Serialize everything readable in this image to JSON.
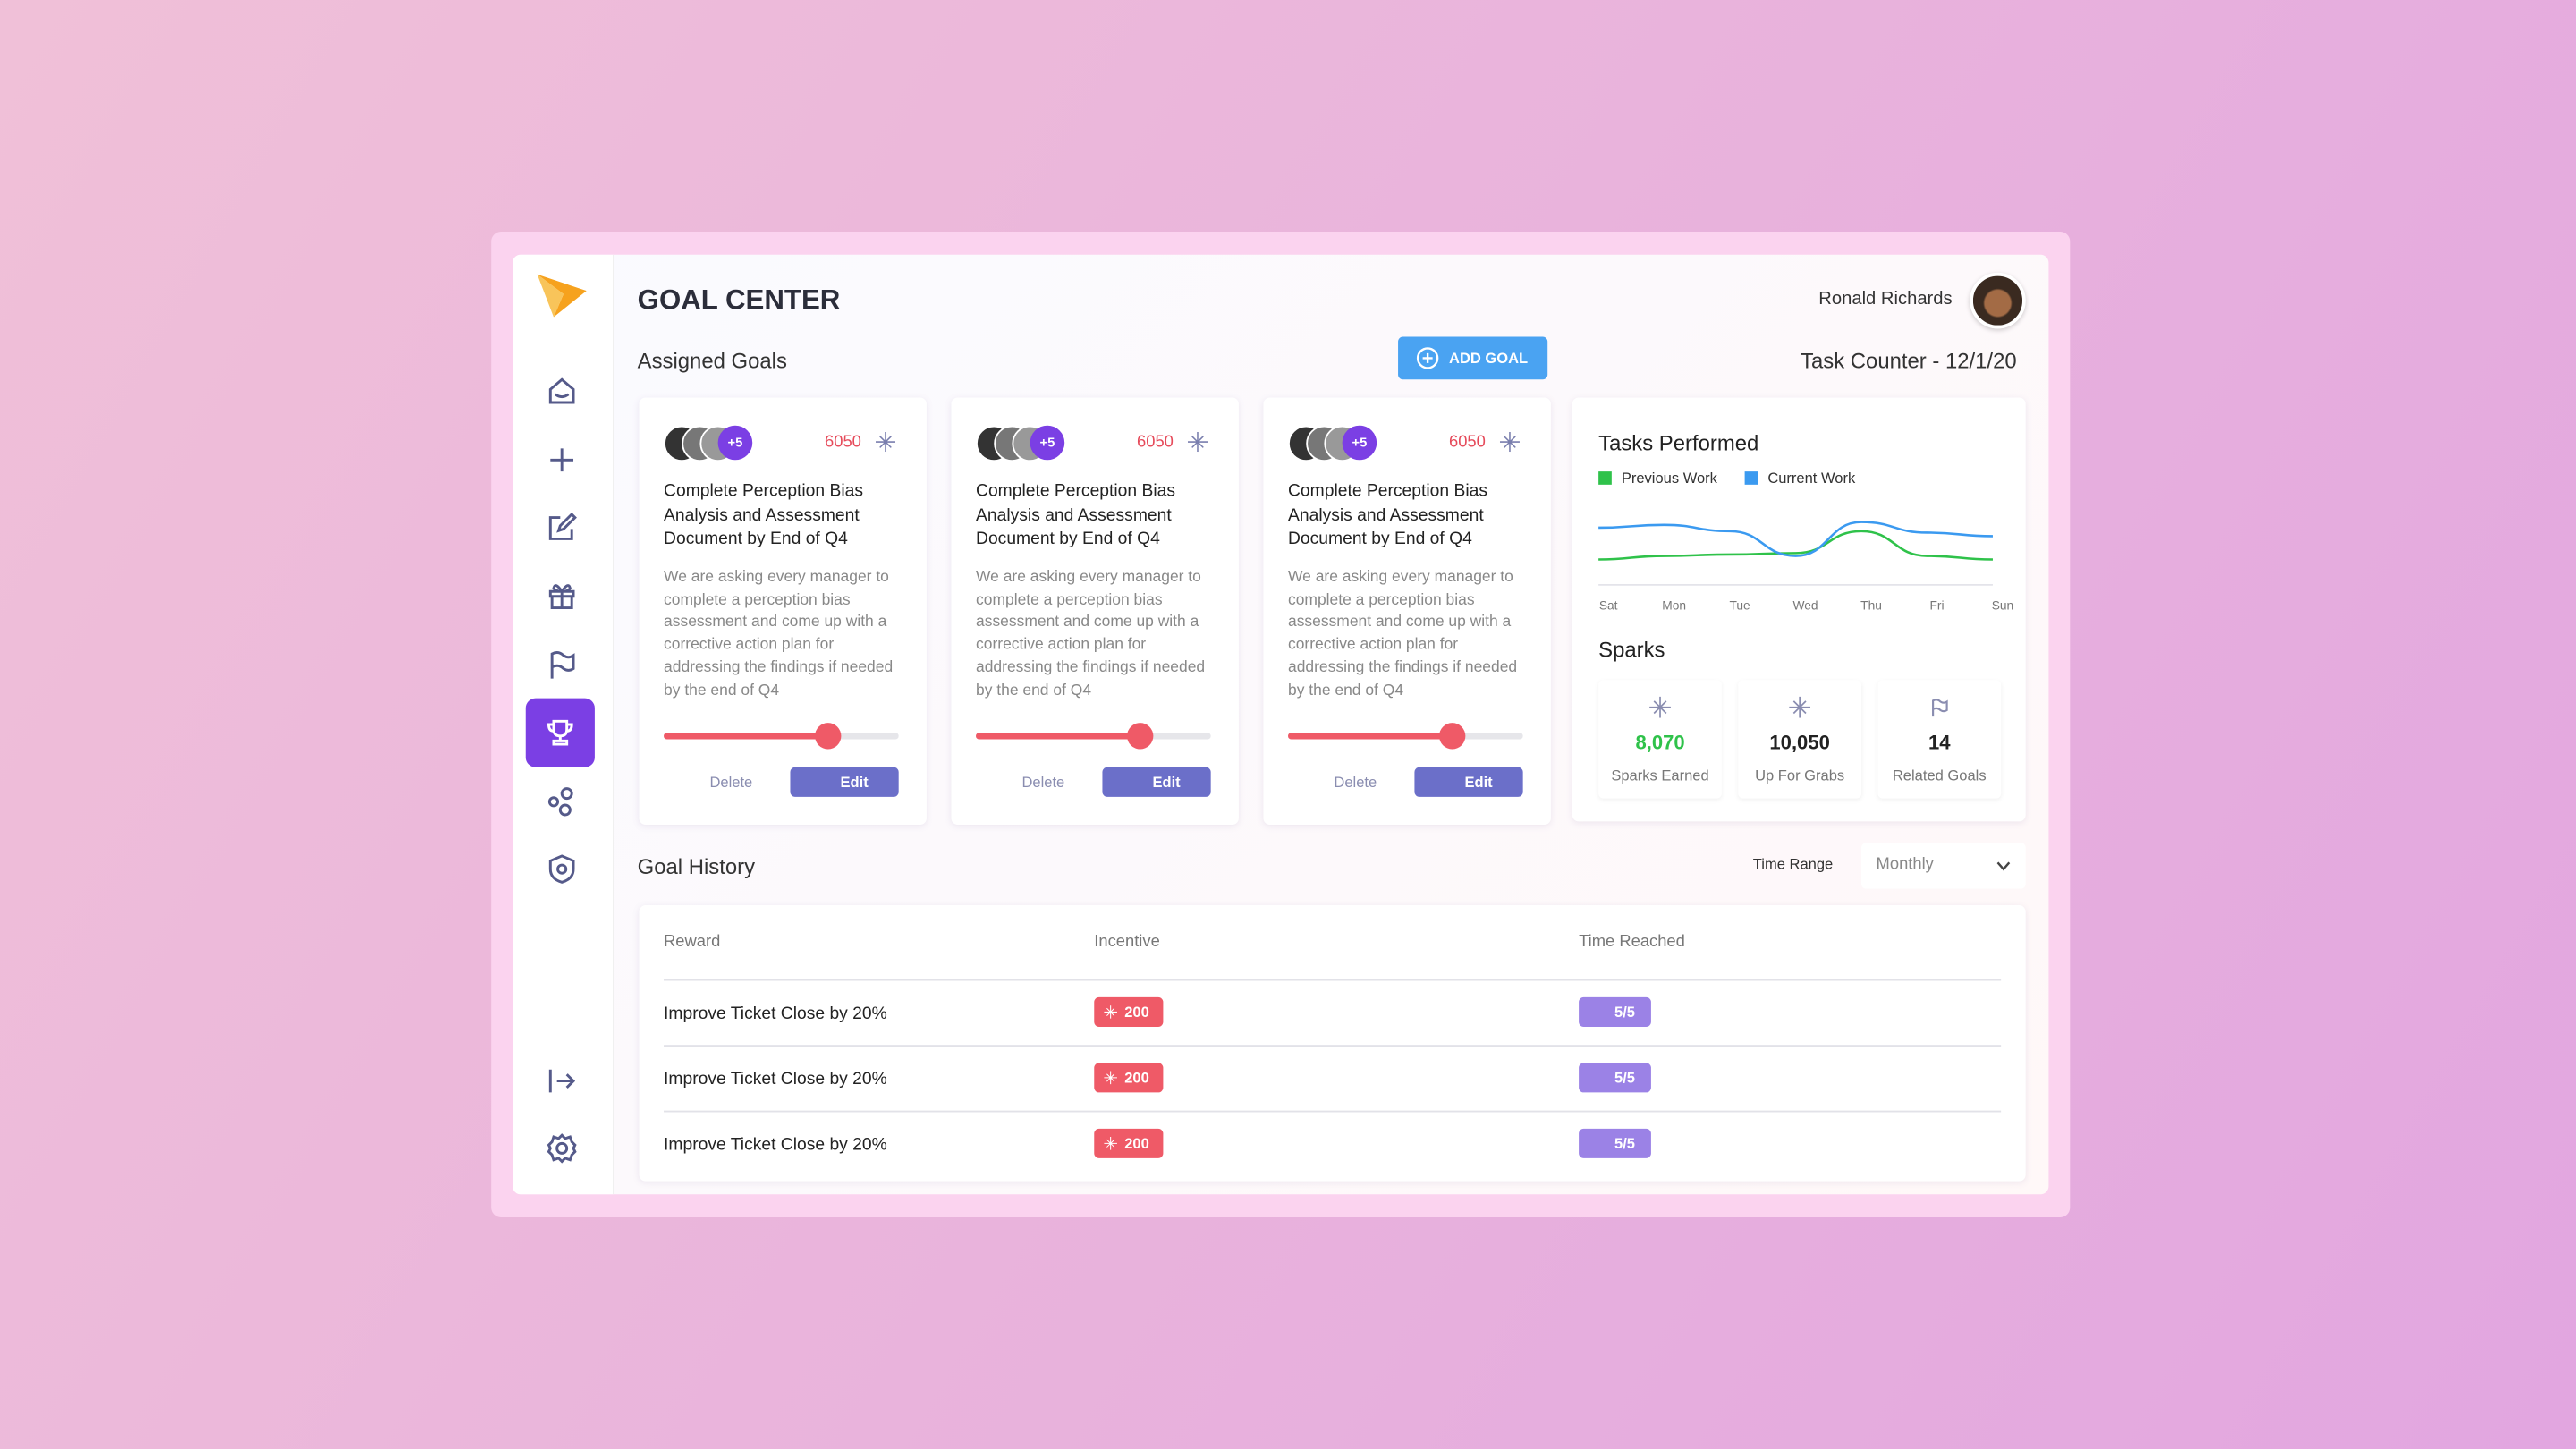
{
  "header": {
    "title": "GOAL CENTER",
    "user": "Ronald Richards"
  },
  "assigned_goals": {
    "title": "Assigned Goals",
    "add_button": "ADD GOAL",
    "cards": [
      {
        "more": "+5",
        "points": 6050,
        "title": "Complete Perception Bias Analysis and Assessment Document by End of Q4",
        "description": "We are asking every manager to complete a perception bias assessment and come up  with a corrective action plan for addressing the findings if needed by the end of Q4",
        "progress": 70,
        "delete": "Delete",
        "edit": "Edit"
      },
      {
        "more": "+5",
        "points": 6050,
        "title": "Complete Perception Bias Analysis and Assessment Document by End of Q4",
        "description": "We are asking every manager to complete a perception bias assessment and come up  with a corrective action plan for addressing the findings if needed by the end of Q4",
        "progress": 70,
        "delete": "Delete",
        "edit": "Edit"
      },
      {
        "more": "+5",
        "points": 6050,
        "title": "Complete Perception Bias Analysis and Assessment Document by End of Q4",
        "description": "We are asking every manager to complete a perception bias assessment and come up  with a corrective action plan for addressing the findings if needed by the end of Q4",
        "progress": 70,
        "delete": "Delete",
        "edit": "Edit"
      }
    ]
  },
  "task_counter": "Task Counter - 12/1/20",
  "chart_data": {
    "type": "line",
    "title": "Tasks Performed",
    "categories": [
      "Sat",
      "Mon",
      "Tue",
      "Wed",
      "Thu",
      "Fri",
      "Sun"
    ],
    "series": [
      {
        "name": "Previous Work",
        "color": "#2fc24a",
        "values": [
          22,
          27,
          29,
          31,
          62,
          27,
          22
        ]
      },
      {
        "name": "Current Work",
        "color": "#3b9af0",
        "values": [
          67,
          71,
          62,
          27,
          75,
          60,
          55
        ]
      }
    ],
    "ylim": [
      0,
      100
    ]
  },
  "sparks": {
    "title": "Sparks",
    "items": [
      {
        "value": "8,070",
        "label": "Sparks Earned"
      },
      {
        "value": "10,050",
        "label": "Up For Grabs"
      },
      {
        "value": "14",
        "label": "Related Goals"
      }
    ]
  },
  "history": {
    "title": "Goal History",
    "time_range_label": "Time Range",
    "time_range": "Monthly",
    "columns": [
      "Reward",
      "Incentive",
      "Time Reached"
    ],
    "rows": [
      {
        "reward": "Improve Ticket Close by 20%",
        "incentive": 200,
        "reached": "5/5"
      },
      {
        "reward": "Improve Ticket Close by 20%",
        "incentive": 200,
        "reached": "5/5"
      },
      {
        "reward": "Improve Ticket Close by 20%",
        "incentive": 200,
        "reached": "5/5"
      }
    ]
  }
}
